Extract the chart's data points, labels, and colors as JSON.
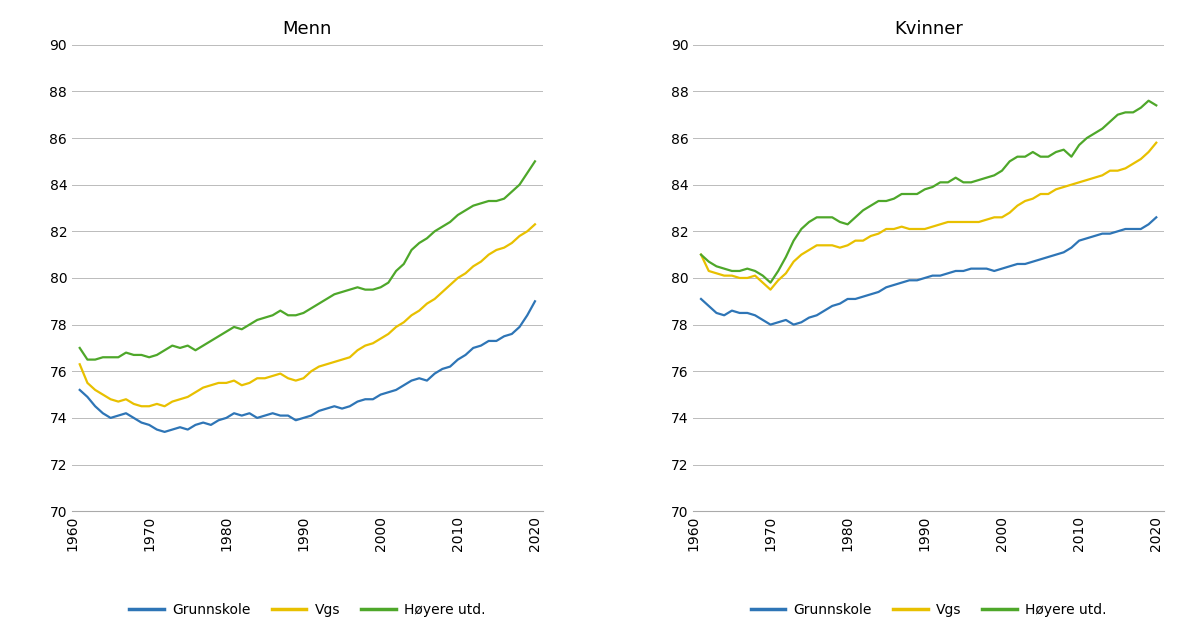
{
  "title_left": "Menn",
  "title_right": "Kvinner",
  "color_grunnskole": "#2E75B6",
  "color_vgs": "#E8C000",
  "color_hoyere": "#4EA72A",
  "legend_labels": [
    "Grunnskole",
    "Vgs",
    "Høyere utd."
  ],
  "ylim": [
    70,
    90
  ],
  "yticks": [
    70,
    72,
    74,
    76,
    78,
    80,
    82,
    84,
    86,
    88,
    90
  ],
  "xticks": [
    1960,
    1970,
    1980,
    1990,
    2000,
    2010,
    2020
  ],
  "years": [
    1961,
    1962,
    1963,
    1964,
    1965,
    1966,
    1967,
    1968,
    1969,
    1970,
    1971,
    1972,
    1973,
    1974,
    1975,
    1976,
    1977,
    1978,
    1979,
    1980,
    1981,
    1982,
    1983,
    1984,
    1985,
    1986,
    1987,
    1988,
    1989,
    1990,
    1991,
    1992,
    1993,
    1994,
    1995,
    1996,
    1997,
    1998,
    1999,
    2000,
    2001,
    2002,
    2003,
    2004,
    2005,
    2006,
    2007,
    2008,
    2009,
    2010,
    2011,
    2012,
    2013,
    2014,
    2015,
    2016,
    2017,
    2018,
    2019,
    2020
  ],
  "menn_grunnskole": [
    75.2,
    74.9,
    74.5,
    74.2,
    74.0,
    74.1,
    74.2,
    74.0,
    73.8,
    73.7,
    73.5,
    73.4,
    73.5,
    73.6,
    73.5,
    73.7,
    73.8,
    73.7,
    73.9,
    74.0,
    74.2,
    74.1,
    74.2,
    74.0,
    74.1,
    74.2,
    74.1,
    74.1,
    73.9,
    74.0,
    74.1,
    74.3,
    74.4,
    74.5,
    74.4,
    74.5,
    74.7,
    74.8,
    74.8,
    75.0,
    75.1,
    75.2,
    75.4,
    75.6,
    75.7,
    75.6,
    75.9,
    76.1,
    76.2,
    76.5,
    76.7,
    77.0,
    77.1,
    77.3,
    77.3,
    77.5,
    77.6,
    77.9,
    78.4,
    79.0
  ],
  "menn_vgs": [
    76.3,
    75.5,
    75.2,
    75.0,
    74.8,
    74.7,
    74.8,
    74.6,
    74.5,
    74.5,
    74.6,
    74.5,
    74.7,
    74.8,
    74.9,
    75.1,
    75.3,
    75.4,
    75.5,
    75.5,
    75.6,
    75.4,
    75.5,
    75.7,
    75.7,
    75.8,
    75.9,
    75.7,
    75.6,
    75.7,
    76.0,
    76.2,
    76.3,
    76.4,
    76.5,
    76.6,
    76.9,
    77.1,
    77.2,
    77.4,
    77.6,
    77.9,
    78.1,
    78.4,
    78.6,
    78.9,
    79.1,
    79.4,
    79.7,
    80.0,
    80.2,
    80.5,
    80.7,
    81.0,
    81.2,
    81.3,
    81.5,
    81.8,
    82.0,
    82.3
  ],
  "menn_hoyere": [
    77.0,
    76.5,
    76.5,
    76.6,
    76.6,
    76.6,
    76.8,
    76.7,
    76.7,
    76.6,
    76.7,
    76.9,
    77.1,
    77.0,
    77.1,
    76.9,
    77.1,
    77.3,
    77.5,
    77.7,
    77.9,
    77.8,
    78.0,
    78.2,
    78.3,
    78.4,
    78.6,
    78.4,
    78.4,
    78.5,
    78.7,
    78.9,
    79.1,
    79.3,
    79.4,
    79.5,
    79.6,
    79.5,
    79.5,
    79.6,
    79.8,
    80.3,
    80.6,
    81.2,
    81.5,
    81.7,
    82.0,
    82.2,
    82.4,
    82.7,
    82.9,
    83.1,
    83.2,
    83.3,
    83.3,
    83.4,
    83.7,
    84.0,
    84.5,
    85.0
  ],
  "kvinner_grunnskole": [
    79.1,
    78.8,
    78.5,
    78.4,
    78.6,
    78.5,
    78.5,
    78.4,
    78.2,
    78.0,
    78.1,
    78.2,
    78.0,
    78.1,
    78.3,
    78.4,
    78.6,
    78.8,
    78.9,
    79.1,
    79.1,
    79.2,
    79.3,
    79.4,
    79.6,
    79.7,
    79.8,
    79.9,
    79.9,
    80.0,
    80.1,
    80.1,
    80.2,
    80.3,
    80.3,
    80.4,
    80.4,
    80.4,
    80.3,
    80.4,
    80.5,
    80.6,
    80.6,
    80.7,
    80.8,
    80.9,
    81.0,
    81.1,
    81.3,
    81.6,
    81.7,
    81.8,
    81.9,
    81.9,
    82.0,
    82.1,
    82.1,
    82.1,
    82.3,
    82.6
  ],
  "kvinner_vgs": [
    81.0,
    80.3,
    80.2,
    80.1,
    80.1,
    80.0,
    80.0,
    80.1,
    79.8,
    79.5,
    79.9,
    80.2,
    80.7,
    81.0,
    81.2,
    81.4,
    81.4,
    81.4,
    81.3,
    81.4,
    81.6,
    81.6,
    81.8,
    81.9,
    82.1,
    82.1,
    82.2,
    82.1,
    82.1,
    82.1,
    82.2,
    82.3,
    82.4,
    82.4,
    82.4,
    82.4,
    82.4,
    82.5,
    82.6,
    82.6,
    82.8,
    83.1,
    83.3,
    83.4,
    83.6,
    83.6,
    83.8,
    83.9,
    84.0,
    84.1,
    84.2,
    84.3,
    84.4,
    84.6,
    84.6,
    84.7,
    84.9,
    85.1,
    85.4,
    85.8
  ],
  "kvinner_hoyere": [
    81.0,
    80.7,
    80.5,
    80.4,
    80.3,
    80.3,
    80.4,
    80.3,
    80.1,
    79.8,
    80.3,
    80.9,
    81.6,
    82.1,
    82.4,
    82.6,
    82.6,
    82.6,
    82.4,
    82.3,
    82.6,
    82.9,
    83.1,
    83.3,
    83.3,
    83.4,
    83.6,
    83.6,
    83.6,
    83.8,
    83.9,
    84.1,
    84.1,
    84.3,
    84.1,
    84.1,
    84.2,
    84.3,
    84.4,
    84.6,
    85.0,
    85.2,
    85.2,
    85.4,
    85.2,
    85.2,
    85.4,
    85.5,
    85.2,
    85.7,
    86.0,
    86.2,
    86.4,
    86.7,
    87.0,
    87.1,
    87.1,
    87.3,
    87.6,
    87.4
  ]
}
